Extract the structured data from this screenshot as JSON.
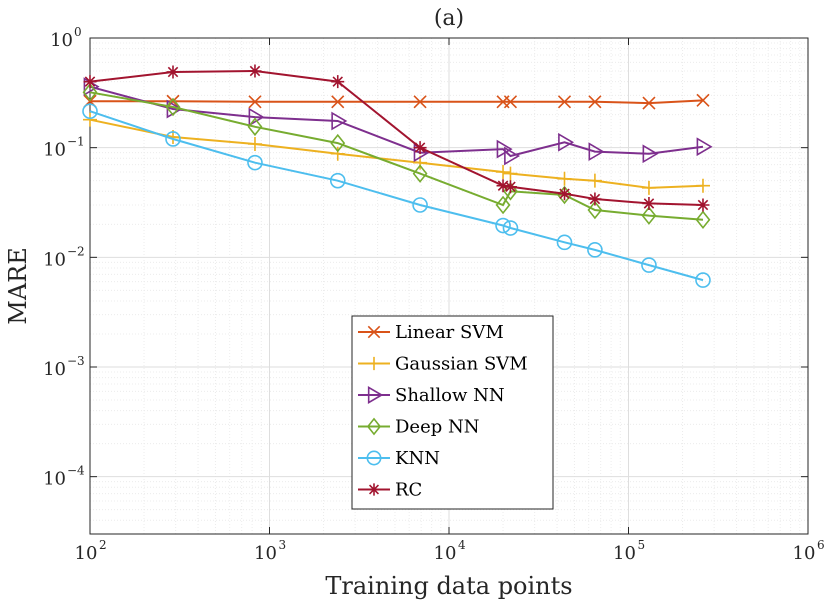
{
  "chart_data": {
    "type": "line",
    "title": "(a)",
    "xlabel": "Training data points",
    "ylabel": "MARE",
    "xscale": "log",
    "yscale": "log",
    "xlim": [
      100,
      1000000
    ],
    "ylim": [
      3e-05,
      1
    ],
    "grid": true,
    "x_tick_labels": [
      {
        "value": 100,
        "base": "10",
        "exp": "2"
      },
      {
        "value": 1000,
        "base": "10",
        "exp": "3"
      },
      {
        "value": 10000,
        "base": "10",
        "exp": "4"
      },
      {
        "value": 100000,
        "base": "10",
        "exp": "5"
      },
      {
        "value": 1000000,
        "base": "10",
        "exp": "6"
      }
    ],
    "y_tick_labels": [
      {
        "value": 1,
        "base": "10",
        "exp": "0"
      },
      {
        "value": 0.1,
        "base": "10",
        "exp": "−1"
      },
      {
        "value": 0.01,
        "base": "10",
        "exp": "−2"
      },
      {
        "value": 0.001,
        "base": "10",
        "exp": "−3"
      },
      {
        "value": 0.0001,
        "base": "10",
        "exp": "−4"
      }
    ],
    "legend_position": "bottom-center",
    "series": [
      {
        "name": "Linear SVM",
        "color": "#D95319",
        "marker": "x",
        "x": [
          100,
          290,
          830,
          2400,
          6900,
          20000,
          22000,
          44000,
          65000,
          130000,
          260000
        ],
        "y": [
          0.265,
          0.265,
          0.262,
          0.262,
          0.262,
          0.262,
          0.262,
          0.262,
          0.262,
          0.255,
          0.27
        ]
      },
      {
        "name": "Gaussian SVM",
        "color": "#EDB120",
        "marker": "plus",
        "x": [
          100,
          290,
          830,
          2400,
          6900,
          20000,
          22000,
          44000,
          65000,
          130000,
          260000
        ],
        "y": [
          0.18,
          0.125,
          0.108,
          0.088,
          0.073,
          0.06,
          0.058,
          0.052,
          0.05,
          0.043,
          0.045
        ]
      },
      {
        "name": "Shallow NN",
        "color": "#7E2F8E",
        "marker": "triangle-right",
        "x": [
          100,
          290,
          830,
          2400,
          6900,
          20000,
          22000,
          44000,
          65000,
          130000,
          260000
        ],
        "y": [
          0.36,
          0.225,
          0.19,
          0.175,
          0.09,
          0.097,
          0.084,
          0.112,
          0.092,
          0.088,
          0.102
        ]
      },
      {
        "name": "Deep NN",
        "color": "#77AC30",
        "marker": "diamond",
        "x": [
          100,
          290,
          830,
          2400,
          6900,
          20000,
          22000,
          44000,
          65000,
          130000,
          260000
        ],
        "y": [
          0.32,
          0.235,
          0.155,
          0.11,
          0.058,
          0.03,
          0.04,
          0.037,
          0.027,
          0.024,
          0.022
        ]
      },
      {
        "name": "KNN",
        "color": "#4DBEEE",
        "marker": "circle",
        "x": [
          100,
          290,
          830,
          2400,
          6900,
          20000,
          22000,
          44000,
          65000,
          130000,
          260000
        ],
        "y": [
          0.215,
          0.12,
          0.073,
          0.05,
          0.03,
          0.0195,
          0.0185,
          0.0137,
          0.0117,
          0.0085,
          0.0062
        ]
      },
      {
        "name": "RC",
        "color": "#A2142F",
        "marker": "asterisk",
        "x": [
          100,
          290,
          830,
          2400,
          6900,
          20000,
          22000,
          44000,
          65000,
          130000,
          260000
        ],
        "y": [
          0.4,
          0.49,
          0.5,
          0.4,
          0.1,
          0.045,
          0.044,
          0.038,
          0.034,
          0.031,
          0.03
        ]
      }
    ]
  }
}
